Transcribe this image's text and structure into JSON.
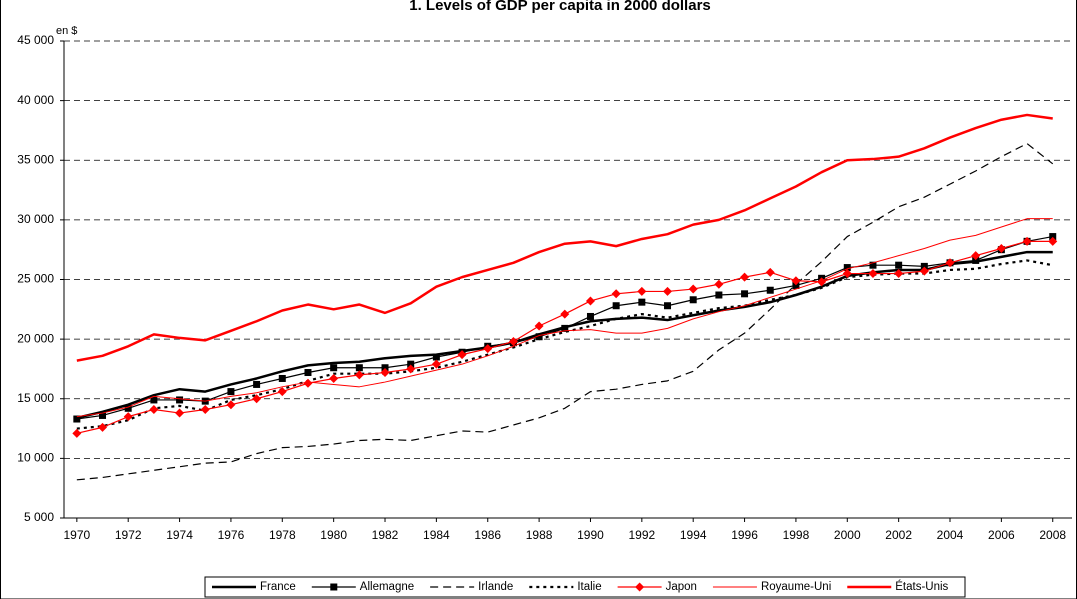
{
  "chart_data": {
    "type": "line",
    "title": "1. Levels of GDP per capita in 2000 dollars",
    "y_unit_label": "en $",
    "x": [
      1970,
      1971,
      1972,
      1973,
      1974,
      1975,
      1976,
      1977,
      1978,
      1979,
      1980,
      1981,
      1982,
      1983,
      1984,
      1985,
      1986,
      1987,
      1988,
      1989,
      1990,
      1991,
      1992,
      1993,
      1994,
      1995,
      1996,
      1997,
      1998,
      1999,
      2000,
      2001,
      2002,
      2003,
      2004,
      2005,
      2006,
      2007,
      2008
    ],
    "xlim": [
      1969.5,
      2008.75
    ],
    "xticks": [
      1970,
      1972,
      1974,
      1976,
      1978,
      1980,
      1982,
      1984,
      1986,
      1988,
      1990,
      1992,
      1994,
      1996,
      1998,
      2000,
      2002,
      2004,
      2006,
      2008
    ],
    "ylim": [
      5000,
      45000
    ],
    "yticks": [
      {
        "value": 5000,
        "label": "5 000"
      },
      {
        "value": 10000,
        "label": "10 000"
      },
      {
        "value": 15000,
        "label": "15 000"
      },
      {
        "value": 20000,
        "label": "20 000"
      },
      {
        "value": 25000,
        "label": "25 000"
      },
      {
        "value": 30000,
        "label": "30 000"
      },
      {
        "value": 35000,
        "label": "35 000"
      },
      {
        "value": 40000,
        "label": "40 000"
      },
      {
        "value": 45000,
        "label": "45 000"
      }
    ],
    "grid": true,
    "legend": "bottom",
    "series": [
      {
        "name": "France",
        "color": "#000000",
        "width": 2.5,
        "dash": "none",
        "marker": "none",
        "values": [
          13400,
          13900,
          14500,
          15300,
          15800,
          15600,
          16200,
          16700,
          17300,
          17800,
          18000,
          18100,
          18400,
          18600,
          18700,
          19000,
          19300,
          19700,
          20400,
          21000,
          21500,
          21700,
          21800,
          21600,
          22000,
          22400,
          22700,
          23100,
          23700,
          24400,
          25300,
          25600,
          25800,
          25800,
          26300,
          26500,
          26900,
          27300,
          27300
        ]
      },
      {
        "name": "Allemagne",
        "color": "#000000",
        "width": 1.2,
        "dash": "none",
        "marker": "square",
        "values": [
          13300,
          13600,
          14200,
          14900,
          14900,
          14800,
          15600,
          16200,
          16700,
          17200,
          17600,
          17600,
          17600,
          17900,
          18500,
          18900,
          19400,
          19700,
          20200,
          20900,
          21900,
          22800,
          23100,
          22800,
          23300,
          23700,
          23800,
          24100,
          24500,
          25100,
          26000,
          26200,
          26200,
          26100,
          26400,
          26600,
          27500,
          28200,
          28600
        ]
      },
      {
        "name": "Irlande",
        "color": "#000000",
        "width": 1.2,
        "dash": "8,5",
        "marker": "none",
        "values": [
          8200,
          8400,
          8700,
          9000,
          9300,
          9600,
          9700,
          10400,
          10900,
          11000,
          11200,
          11500,
          11600,
          11500,
          11900,
          12300,
          12200,
          12800,
          13400,
          14200,
          15600,
          15800,
          16200,
          16500,
          17300,
          19100,
          20500,
          22500,
          24600,
          26500,
          28600,
          29800,
          31100,
          31900,
          33000,
          34100,
          35300,
          36400,
          34700
        ]
      },
      {
        "name": "Italie",
        "color": "#000000",
        "width": 2.2,
        "dash": "3,4",
        "marker": "none",
        "values": [
          12500,
          12700,
          13200,
          14200,
          14400,
          14000,
          14900,
          15300,
          15800,
          16500,
          17100,
          17100,
          17100,
          17300,
          17600,
          18100,
          18700,
          19300,
          20000,
          20600,
          21100,
          21700,
          22100,
          21800,
          22200,
          22600,
          22800,
          23300,
          23700,
          24300,
          25200,
          25400,
          25500,
          25500,
          25800,
          25900,
          26300,
          26600,
          26200
        ]
      },
      {
        "name": "Japon",
        "color": "#ff0000",
        "width": 1.2,
        "dash": "none",
        "marker": "diamond",
        "values": [
          12100,
          12600,
          13500,
          14100,
          13800,
          14100,
          14500,
          15000,
          15600,
          16300,
          16700,
          17000,
          17200,
          17500,
          17900,
          18700,
          19200,
          19800,
          21100,
          22100,
          23200,
          23800,
          24000,
          24000,
          24200,
          24600,
          25200,
          25600,
          24900,
          24800,
          25500,
          25500,
          25500,
          25700,
          26400,
          27000,
          27600,
          28200,
          28200
        ]
      },
      {
        "name": "Royaume-Uni",
        "color": "#ff0000",
        "width": 1,
        "dash": "none",
        "marker": "none",
        "values": [
          13500,
          13800,
          14300,
          15200,
          15000,
          14800,
          15200,
          15500,
          16000,
          16400,
          16200,
          16000,
          16400,
          16900,
          17400,
          17900,
          18600,
          19400,
          20300,
          20700,
          20800,
          20500,
          20500,
          20900,
          21700,
          22300,
          22800,
          23500,
          24200,
          24900,
          25900,
          26400,
          27000,
          27600,
          28300,
          28700,
          29400,
          30100,
          30100
        ]
      },
      {
        "name": "États-Unis",
        "color": "#ff0000",
        "width": 2.5,
        "dash": "none",
        "marker": "none",
        "values": [
          18200,
          18600,
          19400,
          20400,
          20100,
          19900,
          20700,
          21500,
          22400,
          22900,
          22500,
          22900,
          22200,
          23000,
          24400,
          25200,
          25800,
          26400,
          27300,
          28000,
          28200,
          27800,
          28400,
          28800,
          29600,
          30000,
          30800,
          31800,
          32800,
          34000,
          35000,
          35100,
          35300,
          36000,
          36900,
          37700,
          38400,
          38800,
          38500
        ]
      }
    ]
  }
}
